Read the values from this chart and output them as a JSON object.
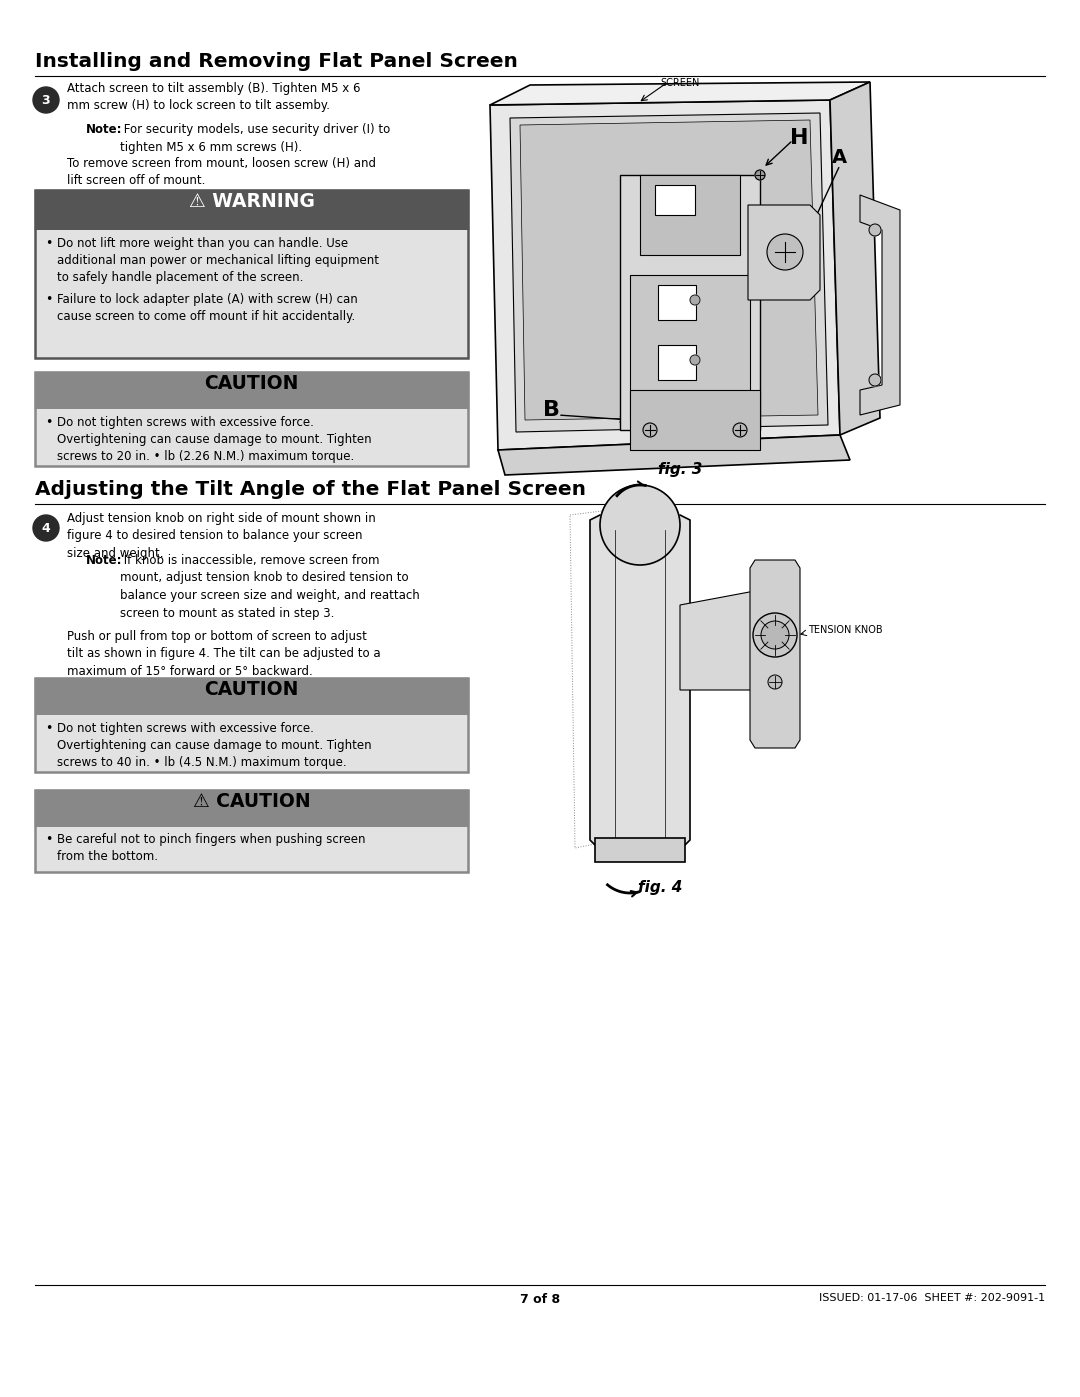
{
  "background_color": "#ffffff",
  "page_width": 10.8,
  "page_height": 13.97,
  "section1_title": "Installing and Removing Flat Panel Screen",
  "section2_title": "Adjusting the Tilt Angle of the Flat Panel Screen",
  "footer_left": "7 of 8",
  "footer_right": "ISSUED: 01-17-06  SHEET #: 202-9091-1",
  "step3_num": "3",
  "step4_num": "4",
  "step3_text1": "Attach screen to tilt assembly (B). Tighten M5 x 6\nmm screw (H) to lock screen to tilt assemby.",
  "step3_note_bold": "Note:",
  "step3_note_rest": " For security models, use security driver (I) to\ntighten M5 x 6 mm screws (H).",
  "step3_text2": "To remove screen from mount, loosen screw (H) and\nlift screen off of mount.",
  "warning_title": "⚠ WARNING",
  "warning_bullets": [
    "Do not lift more weight than you can handle. Use\nadditional man power or mechanical lifting equipment\nto safely handle placement of the screen.",
    "Failure to lock adapter plate (A) with screw (H) can\ncause screen to come off mount if hit accidentally."
  ],
  "caution1_title": "CAUTION",
  "caution1_bullets": [
    "Do not tighten screws with excessive force.\nOvertightening can cause damage to mount. Tighten\nscrews to 20 in. • lb (2.26 N.M.) maximum torque."
  ],
  "step4_text1": "Adjust tension knob on right side of mount shown in\nfigure 4 to desired tension to balance your screen\nsize and weight.",
  "step4_note_bold": "Note:",
  "step4_note_rest": " If knob is inaccessible, remove screen from\nmount, adjust tension knob to desired tension to\nbalance your screen size and weight, and reattach\nscreen to mount as stated in step 3.",
  "step4_text2": "Push or pull from top or bottom of screen to adjust\ntilt as shown in figure 4. The tilt can be adjusted to a\nmaximum of 15° forward or 5° backward.",
  "caution2_title": "CAUTION",
  "caution2_bullets": [
    "Do not tighten screws with excessive force.\nOvertightening can cause damage to mount. Tighten\nscrews to 40 in. • lb (4.5 N.M.) maximum torque."
  ],
  "caution3_title": "⚠ CAUTION",
  "caution3_bullets": [
    "Be careful not to pinch fingers when pushing screen\nfrom the bottom."
  ]
}
